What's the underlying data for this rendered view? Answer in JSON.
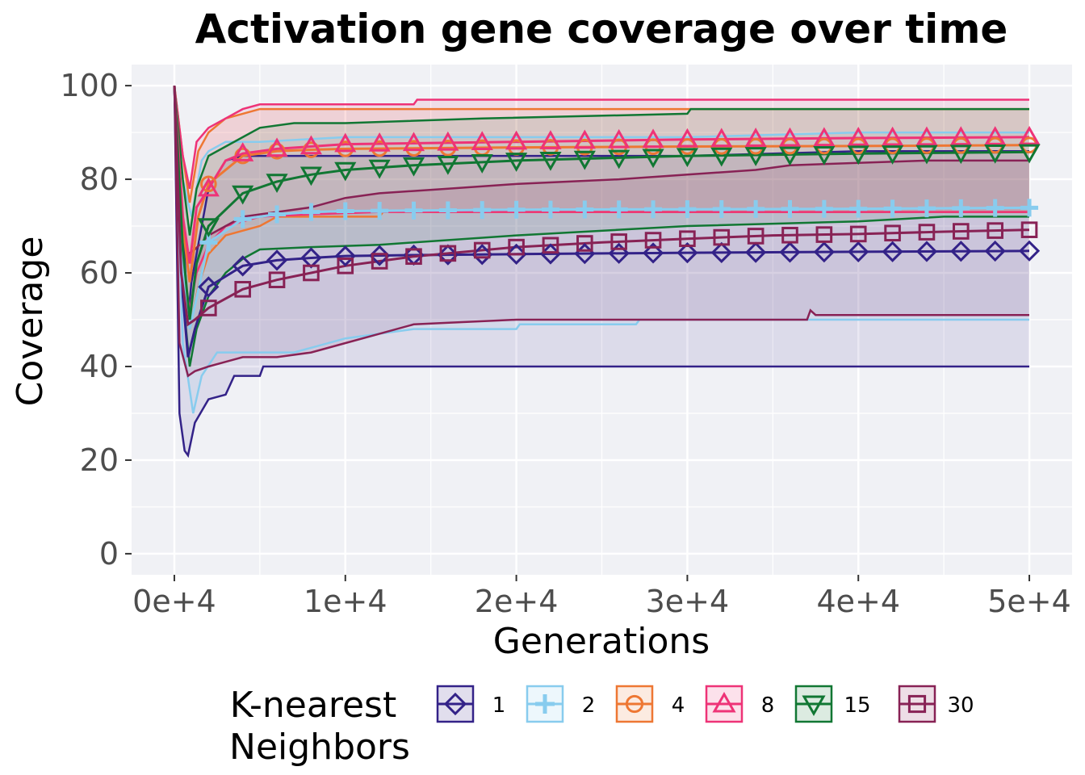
{
  "chart_data": {
    "type": "line",
    "title": "Activation gene coverage over time",
    "xlabel": "Generations",
    "ylabel": "Coverage",
    "xlim": [
      -2500,
      52500
    ],
    "ylim": [
      -4.5,
      104.5
    ],
    "x_ticks": [
      0,
      10000,
      20000,
      30000,
      40000,
      50000
    ],
    "x_tick_labels": [
      "0e+4",
      "1e+4",
      "2e+4",
      "3e+4",
      "4e+4",
      "5e+4"
    ],
    "y_ticks": [
      0,
      20,
      40,
      60,
      80,
      100
    ],
    "y_tick_labels": [
      "0",
      "20",
      "40",
      "60",
      "80",
      "100"
    ],
    "grid": true,
    "legend": {
      "title_lines": [
        "K-nearest",
        "Neighbors"
      ],
      "placement": "bottom"
    },
    "series": [
      {
        "name": "1",
        "color": "#332288",
        "marker": "diamond",
        "mean": [
          [
            0,
            100
          ],
          [
            500,
            55
          ],
          [
            800,
            42
          ],
          [
            1200,
            48
          ],
          [
            2000,
            57
          ],
          [
            4000,
            61.5
          ],
          [
            6000,
            62.7
          ],
          [
            8000,
            63.2
          ],
          [
            10000,
            63.6
          ],
          [
            14000,
            63.8
          ],
          [
            20000,
            64
          ],
          [
            30000,
            64.3
          ],
          [
            40000,
            64.5
          ],
          [
            50000,
            64.7
          ]
        ],
        "upper": [
          [
            0,
            100
          ],
          [
            500,
            70
          ],
          [
            800,
            50
          ],
          [
            1000,
            58
          ],
          [
            2000,
            78
          ],
          [
            3000,
            84
          ],
          [
            4000,
            85
          ],
          [
            10000,
            85
          ],
          [
            20000,
            85
          ],
          [
            30000,
            85
          ],
          [
            40000,
            86
          ],
          [
            50000,
            86
          ]
        ],
        "lower": [
          [
            0,
            100
          ],
          [
            300,
            30
          ],
          [
            600,
            22
          ],
          [
            800,
            21
          ],
          [
            1200,
            28
          ],
          [
            2000,
            33
          ],
          [
            3000,
            34
          ],
          [
            3500,
            38
          ],
          [
            5000,
            38
          ],
          [
            5200,
            40
          ],
          [
            50000,
            40
          ]
        ]
      },
      {
        "name": "2",
        "color": "#88ccee",
        "marker": "plus",
        "mean": [
          [
            0,
            100
          ],
          [
            500,
            60
          ],
          [
            900,
            48
          ],
          [
            1500,
            58
          ],
          [
            2000,
            66.5
          ],
          [
            4000,
            71.5
          ],
          [
            6000,
            72.5
          ],
          [
            8000,
            73
          ],
          [
            10000,
            73.2
          ],
          [
            20000,
            73.5
          ],
          [
            30000,
            73.6
          ],
          [
            40000,
            73.7
          ],
          [
            50000,
            73.9
          ]
        ],
        "upper": [
          [
            0,
            100
          ],
          [
            500,
            80
          ],
          [
            1000,
            72
          ],
          [
            1600,
            84
          ],
          [
            2000,
            86
          ],
          [
            3000,
            88
          ],
          [
            5000,
            88
          ],
          [
            10000,
            89
          ],
          [
            30000,
            89
          ],
          [
            40000,
            90
          ],
          [
            50000,
            90
          ]
        ],
        "lower": [
          [
            0,
            100
          ],
          [
            500,
            45
          ],
          [
            1100,
            30
          ],
          [
            1600,
            38
          ],
          [
            2500,
            43
          ],
          [
            7000,
            43
          ],
          [
            8000,
            44
          ],
          [
            10000,
            46
          ],
          [
            12000,
            47
          ],
          [
            14000,
            48
          ],
          [
            20000,
            48
          ],
          [
            20200,
            49
          ],
          [
            27000,
            49
          ],
          [
            27200,
            50
          ],
          [
            50000,
            50
          ]
        ]
      },
      {
        "name": "4",
        "color": "#ee7733",
        "marker": "circle",
        "mean": [
          [
            0,
            100
          ],
          [
            500,
            70
          ],
          [
            900,
            58
          ],
          [
            1400,
            72
          ],
          [
            2000,
            79
          ],
          [
            4000,
            85
          ],
          [
            6000,
            86
          ],
          [
            8000,
            86.3
          ],
          [
            10000,
            86.5
          ],
          [
            20000,
            86.8
          ],
          [
            30000,
            87
          ],
          [
            40000,
            87.1
          ],
          [
            50000,
            87.3
          ]
        ],
        "upper": [
          [
            0,
            100
          ],
          [
            500,
            85
          ],
          [
            900,
            75
          ],
          [
            1400,
            86
          ],
          [
            2000,
            90
          ],
          [
            3000,
            93
          ],
          [
            4000,
            94
          ],
          [
            5000,
            95
          ],
          [
            10000,
            95
          ],
          [
            20000,
            95
          ],
          [
            50000,
            95
          ]
        ],
        "lower": [
          [
            0,
            100
          ],
          [
            500,
            60
          ],
          [
            900,
            48
          ],
          [
            1400,
            57
          ],
          [
            2000,
            64
          ],
          [
            3000,
            68
          ],
          [
            5000,
            70
          ],
          [
            6000,
            72
          ],
          [
            12000,
            72
          ],
          [
            12200,
            73
          ],
          [
            50000,
            73
          ]
        ]
      },
      {
        "name": "8",
        "color": "#ee3377",
        "marker": "triangle",
        "mean": [
          [
            0,
            100
          ],
          [
            500,
            72
          ],
          [
            900,
            62
          ],
          [
            1300,
            74
          ],
          [
            2000,
            78
          ],
          [
            3000,
            84
          ],
          [
            4000,
            85.5
          ],
          [
            6000,
            86.5
          ],
          [
            10000,
            87.5
          ],
          [
            20000,
            88
          ],
          [
            30000,
            88.5
          ],
          [
            40000,
            88.8
          ],
          [
            50000,
            89
          ]
        ],
        "upper": [
          [
            0,
            100
          ],
          [
            500,
            85
          ],
          [
            900,
            78
          ],
          [
            1300,
            88
          ],
          [
            2000,
            91
          ],
          [
            3000,
            93
          ],
          [
            4000,
            95
          ],
          [
            5000,
            96
          ],
          [
            10000,
            96
          ],
          [
            14000,
            96
          ],
          [
            14200,
            97
          ],
          [
            50000,
            97
          ]
        ],
        "lower": [
          [
            0,
            100
          ],
          [
            500,
            62
          ],
          [
            900,
            52
          ],
          [
            1300,
            60
          ],
          [
            2000,
            66
          ],
          [
            3000,
            70
          ],
          [
            5000,
            72
          ],
          [
            8000,
            72.5
          ],
          [
            12000,
            73
          ],
          [
            50000,
            73
          ]
        ]
      },
      {
        "name": "15",
        "color": "#117733",
        "marker": "triangle-down",
        "mean": [
          [
            0,
            100
          ],
          [
            500,
            65
          ],
          [
            900,
            50
          ],
          [
            1300,
            62
          ],
          [
            2000,
            70
          ],
          [
            4000,
            77
          ],
          [
            6000,
            79.5
          ],
          [
            8000,
            81
          ],
          [
            10000,
            82
          ],
          [
            14000,
            83
          ],
          [
            20000,
            84
          ],
          [
            30000,
            85
          ],
          [
            40000,
            85.5
          ],
          [
            50000,
            85.8
          ]
        ],
        "upper": [
          [
            0,
            100
          ],
          [
            500,
            80
          ],
          [
            900,
            68
          ],
          [
            1300,
            78
          ],
          [
            2000,
            85
          ],
          [
            3000,
            87
          ],
          [
            4000,
            89
          ],
          [
            5000,
            91
          ],
          [
            7000,
            92
          ],
          [
            10000,
            92
          ],
          [
            18000,
            93
          ],
          [
            30000,
            94
          ],
          [
            30200,
            95
          ],
          [
            50000,
            95
          ]
        ],
        "lower": [
          [
            0,
            100
          ],
          [
            500,
            55
          ],
          [
            900,
            40
          ],
          [
            1300,
            48
          ],
          [
            2000,
            55
          ],
          [
            3000,
            60
          ],
          [
            4000,
            63
          ],
          [
            5000,
            65
          ],
          [
            8000,
            65.5
          ],
          [
            12000,
            66
          ],
          [
            20000,
            68
          ],
          [
            30000,
            70
          ],
          [
            40000,
            71
          ],
          [
            45000,
            72
          ],
          [
            50000,
            72
          ]
        ]
      },
      {
        "name": "30",
        "color": "#882255",
        "marker": "square",
        "mean": [
          [
            0,
            100
          ],
          [
            400,
            60
          ],
          [
            800,
            49
          ],
          [
            1200,
            50
          ],
          [
            2000,
            52.5
          ],
          [
            4000,
            56.5
          ],
          [
            6000,
            58.5
          ],
          [
            8000,
            60
          ],
          [
            10000,
            61.5
          ],
          [
            14000,
            63.5
          ],
          [
            20000,
            65.5
          ],
          [
            25000,
            66.5
          ],
          [
            30000,
            67.3
          ],
          [
            35000,
            68
          ],
          [
            40000,
            68.3
          ],
          [
            45000,
            68.8
          ],
          [
            50000,
            69.2
          ]
        ],
        "upper": [
          [
            0,
            100
          ],
          [
            400,
            74
          ],
          [
            800,
            64
          ],
          [
            1200,
            65
          ],
          [
            2000,
            68
          ],
          [
            3000,
            70
          ],
          [
            4000,
            72
          ],
          [
            6000,
            73
          ],
          [
            8000,
            74
          ],
          [
            10000,
            76
          ],
          [
            12000,
            77
          ],
          [
            16000,
            78
          ],
          [
            20000,
            79
          ],
          [
            26000,
            80
          ],
          [
            30000,
            81
          ],
          [
            34000,
            82
          ],
          [
            36000,
            83
          ],
          [
            40000,
            83.5
          ],
          [
            44000,
            84
          ],
          [
            50000,
            84
          ]
        ],
        "lower": [
          [
            0,
            100
          ],
          [
            300,
            45
          ],
          [
            800,
            38
          ],
          [
            1200,
            39
          ],
          [
            2000,
            40
          ],
          [
            3000,
            41
          ],
          [
            4000,
            42
          ],
          [
            6000,
            42
          ],
          [
            8000,
            43
          ],
          [
            10000,
            45
          ],
          [
            12000,
            47
          ],
          [
            14000,
            49
          ],
          [
            20000,
            50
          ],
          [
            30000,
            50
          ],
          [
            37000,
            50
          ],
          [
            37200,
            52
          ],
          [
            37500,
            51
          ],
          [
            50000,
            51
          ]
        ]
      }
    ]
  }
}
